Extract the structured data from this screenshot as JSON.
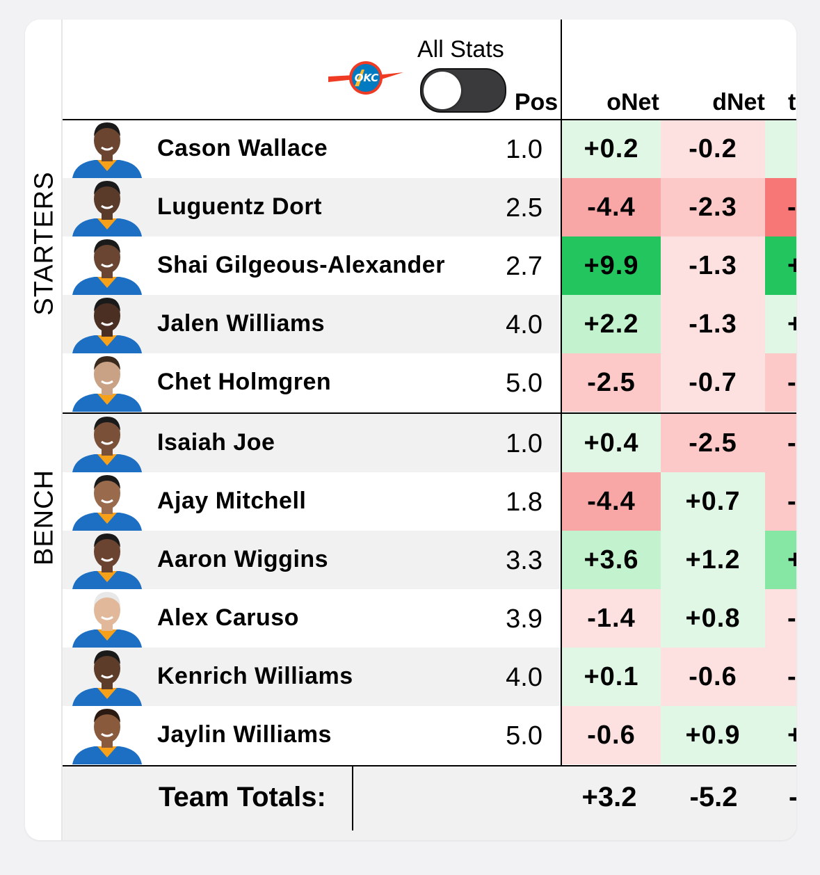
{
  "header": {
    "toggle_label": "All Stats",
    "toggle_on": false,
    "columns": {
      "pos": "Pos",
      "onet": "oNet",
      "dnet": "dNet",
      "third_partial": "t"
    },
    "team_logo": "okc-thunder-logo",
    "logo_text": "OKC"
  },
  "sections": {
    "starters": "STARTERS",
    "bench": "BENCH"
  },
  "players": [
    {
      "name": "Cason Wallace",
      "pos": "1.0",
      "onet": "+0.2",
      "dnet": "-0.2",
      "third": "",
      "onet_color": "#dff7e4",
      "dnet_color": "#fde0e0",
      "third_color": "#dff7e4"
    },
    {
      "name": "Luguentz Dort",
      "pos": "2.5",
      "onet": "-4.4",
      "dnet": "-2.3",
      "third": "-",
      "onet_color": "#f9a6a6",
      "dnet_color": "#fcc8c8",
      "third_color": "#f77777"
    },
    {
      "name": "Shai Gilgeous-Alexander",
      "pos": "2.7",
      "onet": "+9.9",
      "dnet": "-1.3",
      "third": "+",
      "onet_color": "#22c55e",
      "dnet_color": "#fde0e0",
      "third_color": "#22c55e"
    },
    {
      "name": "Jalen Williams",
      "pos": "4.0",
      "onet": "+2.2",
      "dnet": "-1.3",
      "third": "+",
      "onet_color": "#c3f2cf",
      "dnet_color": "#fde0e0",
      "third_color": "#dff7e4"
    },
    {
      "name": "Chet Holmgren",
      "pos": "5.0",
      "onet": "-2.5",
      "dnet": "-0.7",
      "third": "-",
      "onet_color": "#fcc8c8",
      "dnet_color": "#fde0e0",
      "third_color": "#fcc8c8"
    },
    {
      "name": "Isaiah Joe",
      "pos": "1.0",
      "onet": "+0.4",
      "dnet": "-2.5",
      "third": "-",
      "onet_color": "#dff7e4",
      "dnet_color": "#fcc8c8",
      "third_color": "#fcc8c8"
    },
    {
      "name": "Ajay Mitchell",
      "pos": "1.8",
      "onet": "-4.4",
      "dnet": "+0.7",
      "third": "-",
      "onet_color": "#f9a6a6",
      "dnet_color": "#dff7e4",
      "third_color": "#fcc8c8"
    },
    {
      "name": "Aaron Wiggins",
      "pos": "3.3",
      "onet": "+3.6",
      "dnet": "+1.2",
      "third": "+",
      "onet_color": "#c3f2cf",
      "dnet_color": "#dff7e4",
      "third_color": "#86e6a3"
    },
    {
      "name": "Alex Caruso",
      "pos": "3.9",
      "onet": "-1.4",
      "dnet": "+0.8",
      "third": "-",
      "onet_color": "#fde0e0",
      "dnet_color": "#dff7e4",
      "third_color": "#fde0e0"
    },
    {
      "name": "Kenrich Williams",
      "pos": "4.0",
      "onet": "+0.1",
      "dnet": "-0.6",
      "third": "-",
      "onet_color": "#dff7e4",
      "dnet_color": "#fde0e0",
      "third_color": "#fde0e0"
    },
    {
      "name": "Jaylin Williams",
      "pos": "5.0",
      "onet": "-0.6",
      "dnet": "+0.9",
      "third": "+",
      "onet_color": "#fde0e0",
      "dnet_color": "#dff7e4",
      "third_color": "#dff7e4"
    }
  ],
  "totals": {
    "label": "Team Totals:",
    "onet": "+3.2",
    "dnet": "-5.2",
    "third": "-"
  },
  "colors": {
    "thunder_blue": "#007ac1",
    "thunder_orange": "#ef3b24",
    "jersey_blue": "#1d6fc4"
  }
}
